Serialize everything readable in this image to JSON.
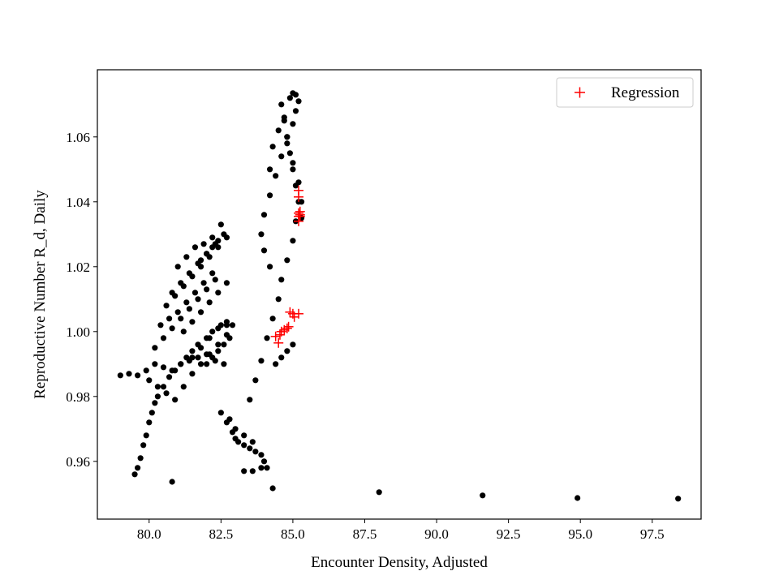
{
  "chart_data": {
    "type": "scatter",
    "title": "",
    "xlabel": "Encounter Density, Adjusted",
    "ylabel": "Reproductive Number R_d, Daily",
    "xlim": [
      78.2,
      99.2
    ],
    "ylim": [
      0.9422,
      1.0807
    ],
    "xticks": [
      80.0,
      82.5,
      85.0,
      87.5,
      90.0,
      92.5,
      95.0,
      97.5
    ],
    "xtick_labels": [
      "80.0",
      "82.5",
      "85.0",
      "87.5",
      "90.0",
      "92.5",
      "95.0",
      "97.5"
    ],
    "yticks": [
      0.96,
      0.98,
      1.0,
      1.02,
      1.04,
      1.06
    ],
    "ytick_labels": [
      "0.96",
      "0.98",
      "1.00",
      "1.02",
      "1.04",
      "1.06"
    ],
    "grid": false,
    "legend": {
      "placement": "top-right",
      "entries": [
        "Regression"
      ]
    },
    "series": [
      {
        "marker": "dot",
        "color": "#000000",
        "x": [
          79.5,
          79.6,
          79.7,
          79.8,
          79.9,
          80.0,
          80.1,
          80.2,
          80.3,
          80.5,
          80.7,
          80.9,
          81.1,
          81.3,
          81.5,
          81.7,
          82.0,
          82.2,
          82.5,
          82.7,
          79.0,
          79.3,
          79.6,
          79.9,
          80.2,
          80.5,
          80.8,
          81.1,
          81.4,
          81.7,
          82.0,
          82.3,
          82.6,
          80.0,
          80.3,
          80.6,
          80.9,
          81.2,
          81.5,
          81.8,
          82.1,
          82.4,
          82.7,
          80.2,
          80.5,
          80.8,
          81.1,
          81.4,
          81.7,
          82.0,
          82.3,
          80.4,
          80.7,
          81.0,
          81.3,
          81.6,
          81.9,
          82.2,
          80.6,
          80.9,
          81.2,
          81.5,
          81.8,
          82.1,
          82.4,
          82.7,
          80.8,
          81.1,
          81.4,
          81.7,
          82.0,
          82.3,
          82.6,
          81.0,
          81.3,
          81.6,
          81.9,
          82.2,
          82.5,
          81.2,
          81.5,
          81.8,
          82.1,
          82.4,
          82.7,
          81.5,
          81.8,
          82.1,
          82.4,
          82.7,
          82.9,
          82.0,
          82.2,
          82.4,
          82.6,
          82.8,
          81.8,
          82.0,
          82.2,
          82.4,
          82.5,
          82.7,
          82.9,
          83.0,
          83.1,
          83.3,
          83.5,
          83.7,
          83.9,
          84.0,
          84.1,
          83.9,
          83.6,
          83.3,
          82.8,
          83.0,
          83.3,
          83.6,
          83.5,
          83.7,
          83.9,
          84.1,
          84.3,
          84.5,
          84.6,
          84.8,
          85.0,
          85.1,
          85.3,
          85.2,
          85.0,
          84.8,
          84.2,
          84.0,
          83.9,
          84.0,
          84.2,
          84.4,
          84.6,
          84.8,
          85.0,
          85.1,
          85.2,
          85.1,
          85.0,
          84.9,
          84.7,
          84.5,
          84.3,
          84.2,
          84.6,
          84.7,
          84.8,
          84.9,
          85.0,
          85.1,
          85.2,
          85.3,
          84.4,
          84.6,
          84.8,
          85.0,
          80.8,
          84.3,
          88.0,
          91.6,
          94.9,
          98.4
        ],
        "y": [
          0.956,
          0.958,
          0.961,
          0.965,
          0.968,
          0.972,
          0.975,
          0.978,
          0.98,
          0.983,
          0.986,
          0.988,
          0.99,
          0.992,
          0.994,
          0.996,
          0.998,
          1.0,
          1.002,
          1.003,
          0.9865,
          0.987,
          0.9865,
          0.988,
          0.99,
          0.989,
          0.988,
          0.99,
          0.991,
          0.992,
          0.993,
          0.991,
          0.99,
          0.985,
          0.983,
          0.981,
          0.979,
          0.983,
          0.987,
          0.99,
          0.993,
          0.996,
          0.999,
          0.995,
          0.998,
          1.001,
          1.004,
          1.007,
          1.01,
          1.013,
          1.016,
          1.002,
          1.004,
          1.006,
          1.009,
          1.012,
          1.015,
          1.018,
          1.008,
          1.011,
          1.014,
          1.017,
          1.02,
          1.023,
          1.026,
          1.029,
          1.012,
          1.015,
          1.018,
          1.021,
          1.024,
          1.027,
          1.03,
          1.02,
          1.023,
          1.026,
          1.027,
          1.029,
          1.033,
          1.0,
          1.003,
          1.006,
          1.009,
          1.012,
          1.015,
          0.992,
          0.995,
          0.998,
          1.001,
          1.002,
          1.002,
          0.99,
          0.992,
          0.994,
          0.996,
          0.998,
          1.022,
          1.024,
          1.026,
          1.028,
          0.975,
          0.972,
          0.969,
          0.967,
          0.966,
          0.965,
          0.964,
          0.963,
          0.962,
          0.96,
          0.958,
          0.958,
          0.957,
          0.957,
          0.973,
          0.97,
          0.968,
          0.966,
          0.979,
          0.985,
          0.991,
          0.998,
          1.004,
          1.01,
          1.016,
          1.022,
          1.028,
          1.034,
          1.04,
          1.046,
          1.052,
          1.058,
          1.02,
          1.025,
          1.03,
          1.036,
          1.042,
          1.048,
          1.054,
          1.06,
          1.064,
          1.068,
          1.071,
          1.073,
          1.0735,
          1.072,
          1.066,
          1.062,
          1.057,
          1.05,
          1.07,
          1.065,
          1.06,
          1.055,
          1.05,
          1.045,
          1.04,
          1.035,
          0.99,
          0.992,
          0.994,
          0.996,
          0.9537,
          0.9517,
          0.9505,
          0.9495,
          0.9487,
          0.9485
        ]
      },
      {
        "name": "Regression",
        "marker": "plus",
        "color": "#ff0000",
        "x": [
          84.4,
          84.5,
          84.55,
          84.6,
          84.7,
          84.8,
          84.85,
          84.9,
          85.0,
          85.05,
          85.2,
          85.2,
          85.2,
          85.25,
          85.25,
          85.2,
          85.25,
          85.2,
          85.2
        ],
        "y": [
          0.9985,
          0.9965,
          0.999,
          1.0,
          1.0005,
          1.001,
          1.0015,
          1.006,
          1.0055,
          1.0045,
          1.0055,
          1.034,
          1.0355,
          1.036,
          1.037,
          1.0365,
          1.0355,
          1.0415,
          1.0435
        ]
      }
    ]
  }
}
